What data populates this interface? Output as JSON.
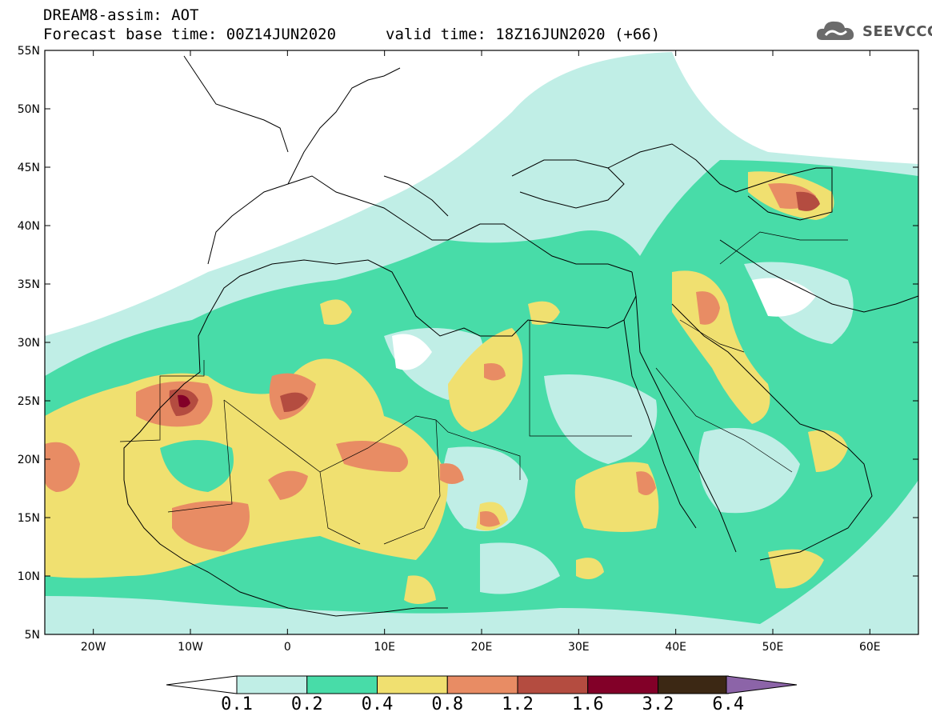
{
  "header": {
    "title": "DREAM8-assim: AOT",
    "base_time": "Forecast base time: 00Z14JUN2020",
    "valid_time": "valid time: 18Z16JUN2020 (+66)"
  },
  "logo": {
    "text": "SEEVCCC",
    "icon": "cloud-icon"
  },
  "map": {
    "lon_range": [
      -25,
      65
    ],
    "lat_range": [
      5,
      55
    ],
    "lat_ticks": [
      "55N",
      "50N",
      "45N",
      "40N",
      "35N",
      "30N",
      "25N",
      "20N",
      "15N",
      "10N",
      "5N"
    ],
    "lon_ticks": [
      "20W",
      "10W",
      "0",
      "10E",
      "20E",
      "30E",
      "40E",
      "50E",
      "60E"
    ]
  },
  "colorbar": {
    "colors": [
      "#c0eee6",
      "#48dca8",
      "#f0e070",
      "#e88c64",
      "#b44c40",
      "#820028",
      "#3c2814",
      "#8c64a8"
    ],
    "labels": [
      "0.1",
      "0.2",
      "0.4",
      "0.8",
      "1.2",
      "1.6",
      "3.2",
      "6.4"
    ]
  }
}
